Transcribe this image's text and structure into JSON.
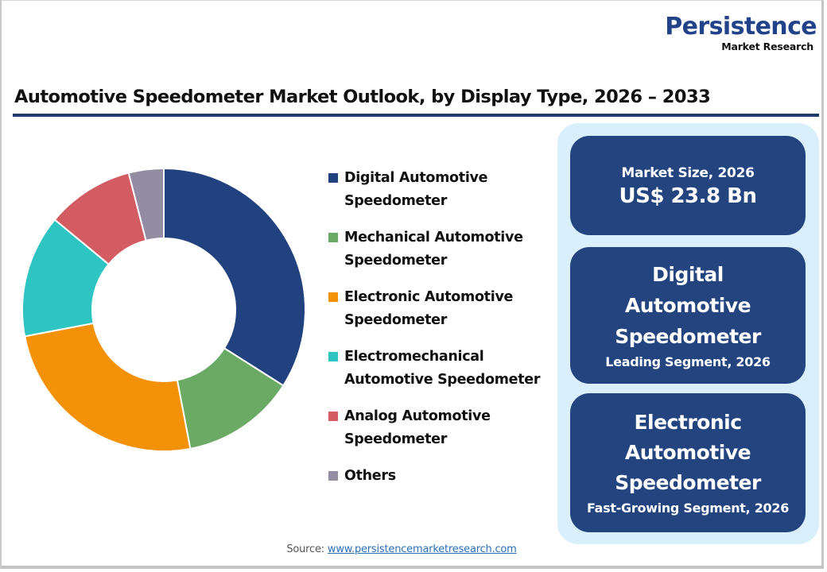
{
  "logo": {
    "main": "Persistence",
    "sub": "Market Research"
  },
  "title": "Automotive Speedometer Market Outlook, by Display Type, 2026 – 2033",
  "legend": [
    {
      "label": "Digital Automotive Speedometer",
      "color": "#22427F"
    },
    {
      "label": "Mechanical Automotive Speedometer",
      "color": "#6AAA64"
    },
    {
      "label": "Electronic Automotive Speedometer",
      "color": "#F39208"
    },
    {
      "label": "Electromechanical Automotive Speedometer",
      "color": "#2EC4C1"
    },
    {
      "label": "Analog Automotive Speedometer",
      "color": "#D35C63"
    },
    {
      "label": "Others",
      "color": "#938CA3"
    }
  ],
  "cards": {
    "market_size": {
      "label": "Market Size, 2026",
      "value": "US$ 23.8 Bn"
    },
    "leading": {
      "title": "Digital Automotive Speedometer",
      "subtitle": "Leading Segment, 2026"
    },
    "fast_growing": {
      "title": "Electronic Automotive Speedometer",
      "subtitle": "Fast-Growing Segment, 2026"
    }
  },
  "source": {
    "label": "Source:",
    "link": "www.persistencemarketresearch.com"
  },
  "chart_data": {
    "type": "pie",
    "subtype": "donut",
    "title": "Automotive Speedometer Market Outlook, by Display Type, 2026 – 2033",
    "categories": [
      "Digital Automotive Speedometer",
      "Mechanical Automotive Speedometer",
      "Electronic Automotive Speedometer",
      "Electromechanical Automotive Speedometer",
      "Analog Automotive Speedometer",
      "Others"
    ],
    "values": [
      34,
      13,
      25,
      14,
      10,
      4
    ],
    "unit": "% share (estimated from slice angles)",
    "colors": [
      "#22427F",
      "#6AAA64",
      "#F39208",
      "#2EC4C1",
      "#D35C63",
      "#938CA3"
    ],
    "start_angle": "12 o'clock, clockwise",
    "legend_position": "right"
  }
}
